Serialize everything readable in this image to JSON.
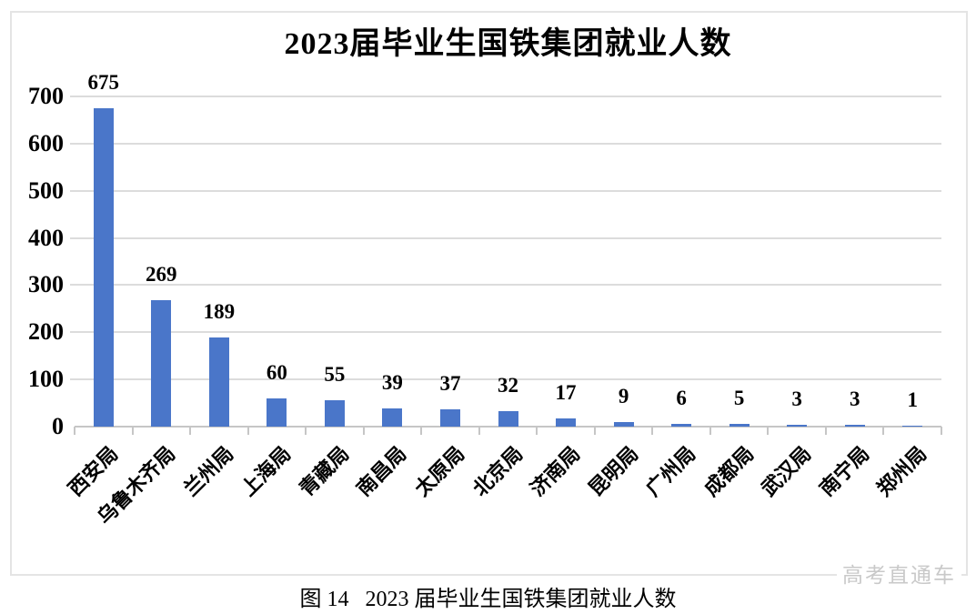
{
  "chart_data": {
    "type": "bar",
    "title": "2023届毕业生国铁集团就业人数",
    "caption": "图 14   2023 届毕业生国铁集团就业人数",
    "watermark": "高考直通车",
    "categories": [
      "西安局",
      "乌鲁木齐局",
      "兰州局",
      "上海局",
      "青藏局",
      "南昌局",
      "太原局",
      "北京局",
      "济南局",
      "昆明局",
      "广州局",
      "成都局",
      "武汉局",
      "南宁局",
      "郑州局"
    ],
    "values": [
      675,
      269,
      189,
      60,
      55,
      39,
      37,
      32,
      17,
      9,
      6,
      5,
      3,
      3,
      1
    ],
    "xlabel": "",
    "ylabel": "",
    "ylim": [
      0,
      700
    ],
    "yticks": [
      0,
      100,
      200,
      300,
      400,
      500,
      600,
      700
    ],
    "grid": "horizontal",
    "legend": "none",
    "bar_color": "#4A76C9",
    "gridline_color": "#dcdcdc",
    "axis_color": "#c6c6c6",
    "text_color": "#000000",
    "watermark_color": "#c9c9c9"
  }
}
